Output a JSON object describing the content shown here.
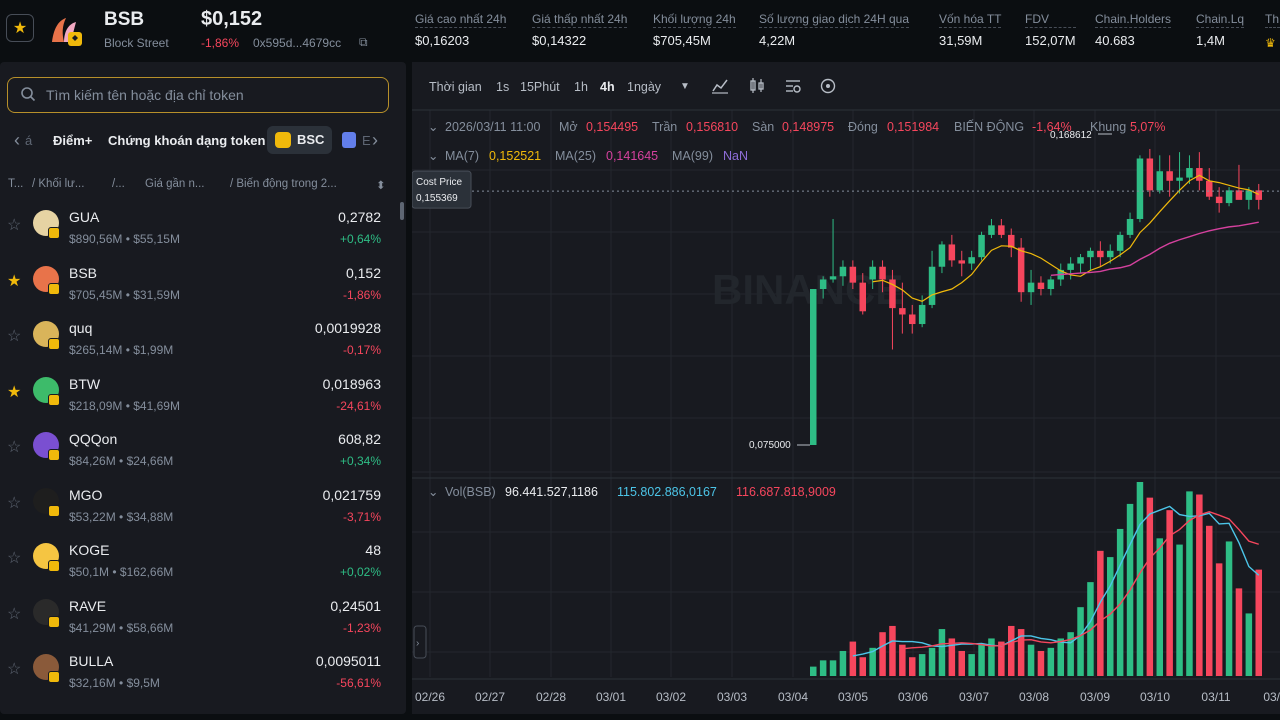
{
  "header": {
    "symbol": "BSB",
    "name": "Block Street",
    "price": "$0,152",
    "change": "-1,86%",
    "address": "0x595d...4679cc",
    "stats": [
      {
        "label": "Giá cao nhất 24h",
        "value": "$0,16203"
      },
      {
        "label": "Giá thấp nhất 24h",
        "value": "$0,14322"
      },
      {
        "label": "Khối lượng 24h",
        "value": "$705,45M"
      },
      {
        "label": "Số lượng giao dịch 24H qua",
        "value": "4,22M"
      },
      {
        "label": "Vốn hóa TT",
        "value": "31,59M"
      },
      {
        "label": "FDV",
        "value": "152,07M"
      },
      {
        "label": "Chain.Holders",
        "value": "40.683"
      },
      {
        "label": "Chain.Lq",
        "value": "1,4M"
      },
      {
        "label": "Th",
        "value": ""
      }
    ]
  },
  "search": {
    "placeholder": "Tìm kiếm tên hoặc địa chỉ token"
  },
  "tabs": {
    "partial_left": "á",
    "items": [
      "Điểm+",
      "Chứng khoán dạng token"
    ],
    "bsc": "BSC",
    "partial_right": "E"
  },
  "columns": [
    "T...",
    "/ Khối lư...",
    "/...",
    "Giá gần n...",
    "/ Biến động trong 2..."
  ],
  "tokens": [
    {
      "name": "GUA",
      "sub": "$890,56M • $55,15M",
      "price": "0,2782",
      "change": "+0,64%",
      "dir": "up",
      "fav": false,
      "color": "#e6d3a3"
    },
    {
      "name": "BSB",
      "sub": "$705,45M • $31,59M",
      "price": "0,152",
      "change": "-1,86%",
      "dir": "down",
      "fav": true,
      "color": "#e8734a"
    },
    {
      "name": "quq",
      "sub": "$265,14M • $1,99M",
      "price": "0,0019928",
      "change": "-0,17%",
      "dir": "down",
      "fav": false,
      "color": "#d9b45a"
    },
    {
      "name": "BTW",
      "sub": "$218,09M • $41,69M",
      "price": "0,018963",
      "change": "-24,61%",
      "dir": "down",
      "fav": true,
      "color": "#3dbb6a"
    },
    {
      "name": "QQQon",
      "sub": "$84,26M • $24,66M",
      "price": "608,82",
      "change": "+0,34%",
      "dir": "up",
      "fav": false,
      "color": "#7a4fd1"
    },
    {
      "name": "MGO",
      "sub": "$53,22M • $34,88M",
      "price": "0,021759",
      "change": "-3,71%",
      "dir": "down",
      "fav": false,
      "color": "#1e1e1e"
    },
    {
      "name": "KOGE",
      "sub": "$50,1M • $162,66M",
      "price": "48",
      "change": "+0,02%",
      "dir": "up",
      "fav": false,
      "color": "#f5c542"
    },
    {
      "name": "RAVE",
      "sub": "$41,29M • $58,66M",
      "price": "0,24501",
      "change": "-1,23%",
      "dir": "down",
      "fav": false,
      "color": "#2a2a2a"
    },
    {
      "name": "BULLA",
      "sub": "$32,16M • $9,5M",
      "price": "0,0095011",
      "change": "-56,61%",
      "dir": "down",
      "fav": false,
      "color": "#8a5a3a"
    }
  ],
  "toolbar": {
    "time_label": "Thời gian",
    "intervals": [
      "1s",
      "15Phút",
      "1h",
      "4h",
      "1ngày"
    ],
    "active": "4h"
  },
  "chart_info": {
    "date": "2026/03/11 11:00",
    "open_label": "Mở",
    "open": "0,154495",
    "high_label": "Trần",
    "high": "0,156810",
    "low_label": "Sàn",
    "low": "0,148975",
    "close_label": "Đóng",
    "close": "0,151984",
    "change_label": "BIẾN ĐỘNG",
    "change": "-1,64%",
    "range_label": "Khung",
    "range": "5,07%",
    "ma7_label": "MA(7)",
    "ma7": "0,152521",
    "ma25_label": "MA(25)",
    "ma25": "0,141645",
    "ma99_label": "MA(99)",
    "ma99": "NaN",
    "cost_price_label": "Cost Price",
    "cost_price": "0,155369",
    "max_label": "0,168612",
    "min_label": "0,075000",
    "vol_label": "Vol(BSB)",
    "vol": "96.441.527,1186",
    "vol_ma1": "115.802.886,0167",
    "vol_ma2": "116.687.818,9009",
    "watermark": "BINANCE"
  },
  "chart_data": {
    "type": "candlestick",
    "x_ticks": [
      "02/26",
      "02/27",
      "02/28",
      "03/01",
      "03/02",
      "03/03",
      "03/04",
      "03/05",
      "03/06",
      "03/07",
      "03/08",
      "03/09",
      "03/10",
      "03/11",
      "03/1"
    ],
    "candles": [
      [
        0.075,
        0.124,
        0.075,
        0.124,
        3
      ],
      [
        0.124,
        0.128,
        0.121,
        0.127,
        5
      ],
      [
        0.127,
        0.146,
        0.126,
        0.128,
        5
      ],
      [
        0.128,
        0.133,
        0.125,
        0.131,
        8
      ],
      [
        0.131,
        0.133,
        0.124,
        0.126,
        11
      ],
      [
        0.126,
        0.129,
        0.116,
        0.117,
        6
      ],
      [
        0.127,
        0.133,
        0.124,
        0.131,
        9
      ],
      [
        0.131,
        0.133,
        0.123,
        0.127,
        14
      ],
      [
        0.127,
        0.13,
        0.105,
        0.118,
        16
      ],
      [
        0.118,
        0.126,
        0.11,
        0.116,
        10
      ],
      [
        0.116,
        0.119,
        0.11,
        0.113,
        6
      ],
      [
        0.113,
        0.122,
        0.112,
        0.119,
        7
      ],
      [
        0.119,
        0.136,
        0.118,
        0.131,
        9
      ],
      [
        0.131,
        0.139,
        0.129,
        0.138,
        15
      ],
      [
        0.138,
        0.141,
        0.131,
        0.133,
        12
      ],
      [
        0.133,
        0.136,
        0.128,
        0.132,
        8
      ],
      [
        0.132,
        0.136,
        0.13,
        0.134,
        7
      ],
      [
        0.134,
        0.142,
        0.133,
        0.141,
        10
      ],
      [
        0.141,
        0.146,
        0.14,
        0.144,
        12
      ],
      [
        0.144,
        0.146,
        0.14,
        0.141,
        11
      ],
      [
        0.141,
        0.143,
        0.134,
        0.137,
        16
      ],
      [
        0.137,
        0.14,
        0.12,
        0.123,
        15
      ],
      [
        0.123,
        0.13,
        0.119,
        0.126,
        10
      ],
      [
        0.126,
        0.128,
        0.122,
        0.124,
        8
      ],
      [
        0.124,
        0.128,
        0.122,
        0.127,
        9
      ],
      [
        0.127,
        0.132,
        0.125,
        0.13,
        12
      ],
      [
        0.13,
        0.134,
        0.127,
        0.132,
        14
      ],
      [
        0.132,
        0.135,
        0.129,
        0.134,
        22
      ],
      [
        0.134,
        0.137,
        0.13,
        0.136,
        30
      ],
      [
        0.136,
        0.139,
        0.131,
        0.134,
        40
      ],
      [
        0.134,
        0.138,
        0.132,
        0.136,
        38
      ],
      [
        0.136,
        0.142,
        0.134,
        0.141,
        47
      ],
      [
        0.141,
        0.148,
        0.14,
        0.146,
        55
      ],
      [
        0.146,
        0.166,
        0.145,
        0.165,
        62
      ],
      [
        0.165,
        0.168,
        0.153,
        0.155,
        57
      ],
      [
        0.155,
        0.166,
        0.154,
        0.161,
        44
      ],
      [
        0.161,
        0.166,
        0.153,
        0.158,
        53
      ],
      [
        0.158,
        0.167,
        0.154,
        0.159,
        42
      ],
      [
        0.159,
        0.166,
        0.157,
        0.162,
        59
      ],
      [
        0.162,
        0.167,
        0.155,
        0.158,
        58
      ],
      [
        0.158,
        0.162,
        0.152,
        0.153,
        48
      ],
      [
        0.153,
        0.156,
        0.148,
        0.151,
        36
      ],
      [
        0.151,
        0.156,
        0.15,
        0.155,
        43
      ],
      [
        0.155,
        0.163,
        0.153,
        0.152,
        28
      ],
      [
        0.152,
        0.156,
        0.149,
        0.155,
        20
      ],
      [
        0.155,
        0.157,
        0.149,
        0.152,
        34
      ]
    ],
    "ylim": [
      0.07,
      0.175
    ]
  },
  "colors": {
    "up": "#2ebd85",
    "down": "#f6465d",
    "ma7": "#f0b90b",
    "ma25": "#d5419e",
    "ma99": "#8e6dd8",
    "volma1": "#4cc5e8"
  }
}
